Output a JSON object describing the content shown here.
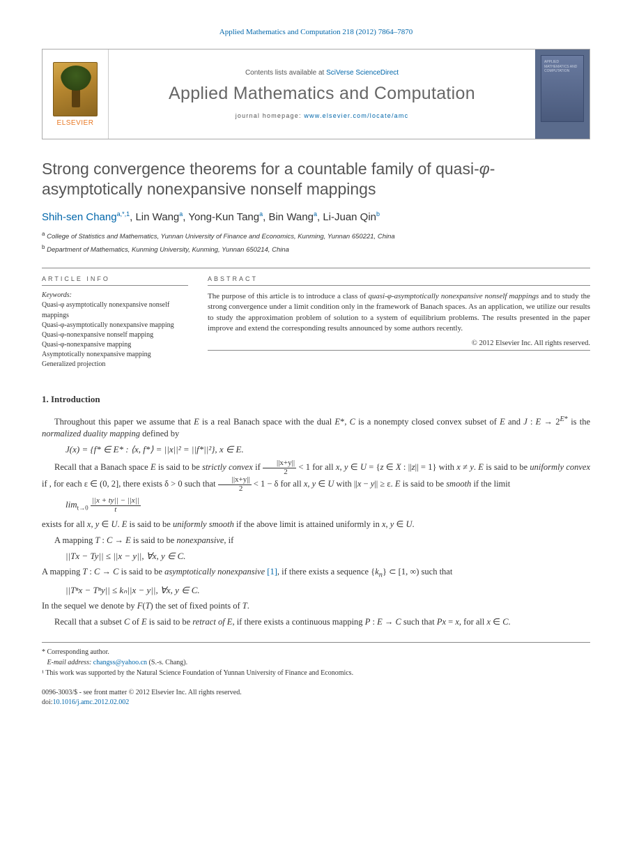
{
  "header": {
    "citation": "Applied Mathematics and Computation 218 (2012) 7864–7870",
    "contents_prefix": "Contents lists available at ",
    "contents_link": "SciVerse ScienceDirect",
    "journal_name": "Applied Mathematics and Computation",
    "homepage_prefix": "journal homepage: ",
    "homepage_url": "www.elsevier.com/locate/amc",
    "elsevier": "ELSEVIER",
    "cover_label": "APPLIED MATHEMATICS AND COMPUTATION"
  },
  "title": "Strong convergence theorems for a countable family of quasi-φ-asymptotically nonexpansive nonself mappings",
  "authors": [
    {
      "name": "Shih-sen Chang",
      "marks": "a,*,1"
    },
    {
      "name": "Lin Wang",
      "marks": "a"
    },
    {
      "name": "Yong-Kun Tang",
      "marks": "a"
    },
    {
      "name": "Bin Wang",
      "marks": "a"
    },
    {
      "name": "Li-Juan Qin",
      "marks": "b"
    }
  ],
  "affiliations": {
    "a": "College of Statistics and Mathematics, Yunnan University of Finance and Economics, Kunming, Yunnan 650221, China",
    "b": "Department of Mathematics, Kunming University, Kunming, Yunnan 650214, China"
  },
  "info": {
    "article_info_label": "ARTICLE INFO",
    "abstract_label": "ABSTRACT",
    "keywords_label": "Keywords:",
    "keywords": [
      "Quasi-φ asymptotically nonexpansive nonself mappings",
      "Quasi-φ-asymptotically nonexpansive mapping",
      "Quasi-φ-nonexpansive nonself mapping",
      "Quasi-φ-nonexpansive mapping",
      "Asymptotically nonexpansive mapping",
      "Generalized projection"
    ]
  },
  "abstract": "The purpose of this article is to introduce a class of quasi-φ-asymptotically nonexpansive nonself mappings and to study the strong convergence under a limit condition only in the framework of Banach spaces. As an application, we utilize our results to study the approximation problem of solution to a system of equilibrium problems. The results presented in the paper improve and extend the corresponding results announced by some authors recently.",
  "copyright": "© 2012 Elsevier Inc. All rights reserved.",
  "section1": {
    "heading": "1. Introduction",
    "p1a": "Throughout this paper we assume that ",
    "p1b": " is a real Banach space with the dual ",
    "p1c": " is a nonempty closed convex subset of ",
    "p1d": " and ",
    "p1e": " is the ",
    "p1f": "normalized duality mapping",
    "p1g": " defined by",
    "eq1": "J(x) = {f* ∈ E* : ⟨x, f*⟩ = ||x||² = ||f*||²},   x ∈ E.",
    "p2a": "Recall that a Banach space ",
    "p2b": " is said to be ",
    "p2c": "strictly convex",
    "p2d": " if ",
    "p2e": " for all ",
    "p2f": " with ",
    "p2g": " is said to be ",
    "p2h": "uniformly convex",
    "p2i": " if , for each ",
    "p2j": ", there exists ",
    "p2k": " such that ",
    "p2l": " for all ",
    "p2m": " with ",
    "p2n": " is said to be ",
    "p2o": "smooth",
    "p2p": " if the limit",
    "p3a": "exists for all ",
    "p3b": " is said to be ",
    "p3c": "uniformly smooth",
    "p3d": " if the above limit is attained uniformly in ",
    "p4a": "A mapping ",
    "p4b": " is said to be ",
    "p4c": "nonexpansive",
    "p4d": ", if",
    "eq3": "||Tx − Ty|| ≤ ||x − y||,   ∀x, y ∈ C.",
    "p5a": "A mapping ",
    "p5b": " is said to be ",
    "p5c": "asymptotically nonexpansive",
    "p5d": ", if there exists a sequence ",
    "p5e": " such that",
    "eq4": "||Tⁿx − Tⁿy|| ≤ kₙ||x − y||,   ∀x, y ∈ C.",
    "p6": "In the sequel we denote by F(T) the set of fixed points of T.",
    "p7a": "Recall that a subset ",
    "p7b": " of ",
    "p7c": " is said to be ",
    "p7d": "retract of E",
    "p7e": ", if there exists a continuous mapping ",
    "p7f": " such that ",
    "p7g": ", for all "
  },
  "footnotes": {
    "corr": "* Corresponding author.",
    "email_label": "E-mail address:",
    "email": "changss@yahoo.cn",
    "email_who": " (S.-s. Chang).",
    "note1": "¹ This work was supported by the Natural Science Foundation of Yunnan University of Finance and Economics."
  },
  "doi": {
    "line1": "0096-3003/$ - see front matter © 2012 Elsevier Inc. All rights reserved.",
    "line2_prefix": "doi:",
    "line2_link": "10.1016/j.amc.2012.02.002"
  },
  "style": {
    "link_color": "#0066aa",
    "text_color": "#333333",
    "heading_color": "#555555",
    "elsevier_orange": "#e87722",
    "cover_bg": "#5a6b8c"
  }
}
